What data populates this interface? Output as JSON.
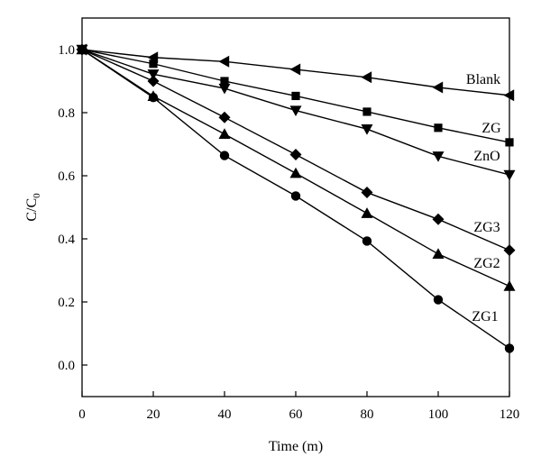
{
  "chart_data": {
    "type": "line",
    "title": "",
    "xlabel": "Time (m)",
    "ylabel": {
      "main": "C/C",
      "sub": "0"
    },
    "xlim": [
      0,
      120
    ],
    "ylim": [
      -0.1,
      1.1
    ],
    "xticks": [
      "0",
      "20",
      "40",
      "60",
      "80",
      "100",
      "120"
    ],
    "yticks": [
      "0.0",
      "0.2",
      "0.4",
      "0.6",
      "0.8",
      "1.0"
    ],
    "grid": false,
    "legend": "inline labels at right end of lines",
    "x": [
      0,
      20,
      40,
      60,
      80,
      100,
      120
    ],
    "series": [
      {
        "name": "Blank",
        "marker": "triangle-left",
        "values": [
          1.0,
          0.975,
          0.962,
          0.937,
          0.912,
          0.88,
          0.855
        ]
      },
      {
        "name": "ZG",
        "marker": "square",
        "values": [
          1.0,
          0.955,
          0.9,
          0.853,
          0.803,
          0.752,
          0.706
        ]
      },
      {
        "name": "ZnO",
        "marker": "triangle-down",
        "values": [
          1.0,
          0.922,
          0.877,
          0.807,
          0.748,
          0.662,
          0.603
        ]
      },
      {
        "name": "ZG3",
        "marker": "diamond",
        "values": [
          1.0,
          0.9,
          0.785,
          0.667,
          0.547,
          0.462,
          0.364
        ]
      },
      {
        "name": "ZG2",
        "marker": "triangle-up",
        "values": [
          1.0,
          0.852,
          0.732,
          0.608,
          0.481,
          0.352,
          0.25
        ]
      },
      {
        "name": "ZG1",
        "marker": "circle",
        "values": [
          1.0,
          0.848,
          0.664,
          0.536,
          0.393,
          0.207,
          0.053
        ]
      }
    ]
  }
}
